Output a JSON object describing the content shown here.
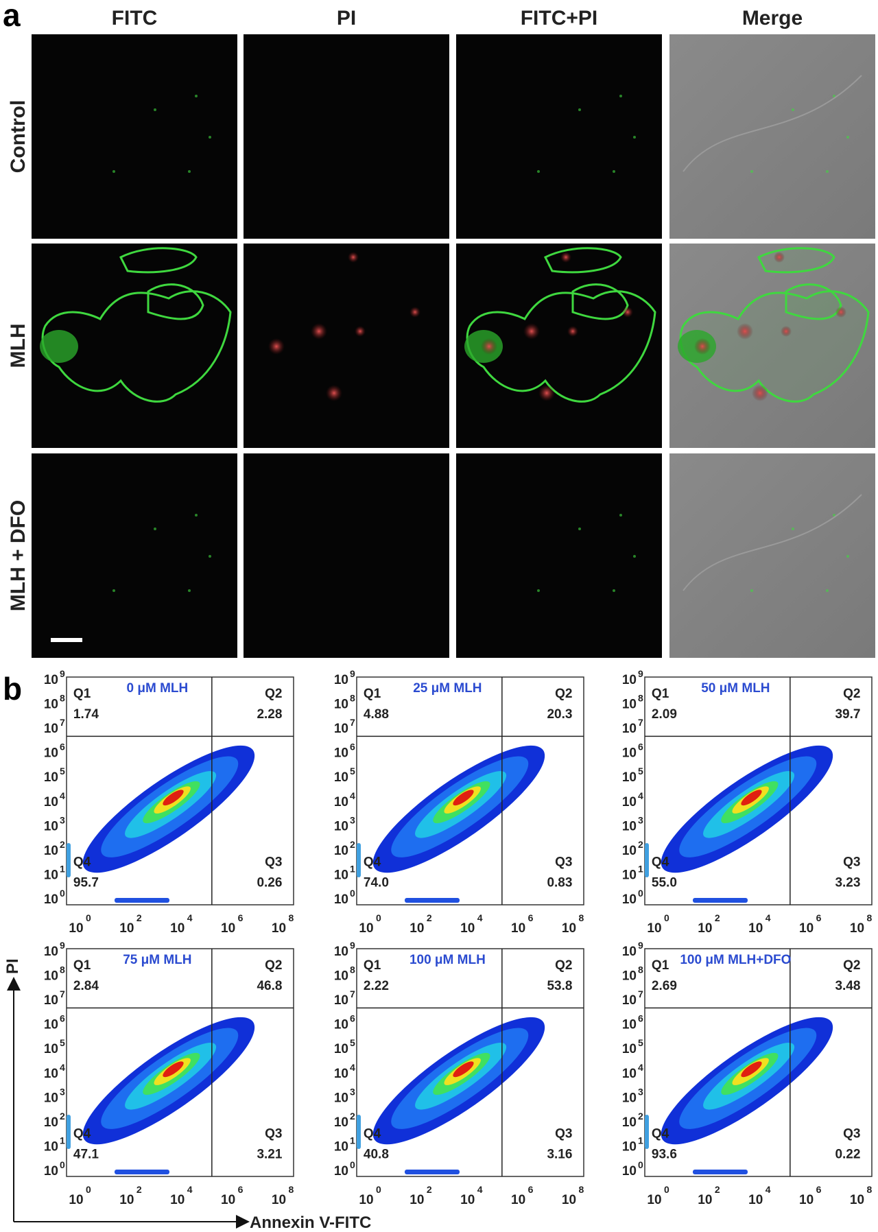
{
  "panel_a": {
    "label": "a",
    "columns": [
      "FITC",
      "PI",
      "FITC+PI",
      "Merge"
    ],
    "rows": [
      "Control",
      "MLH",
      "MLH + DFO"
    ]
  },
  "panel_b": {
    "label": "b",
    "y_axis_label": "PI",
    "x_axis_label": "Annexin V-FITC",
    "tick_base": "10",
    "x_tick_exponents": [
      "0",
      "2",
      "4",
      "6",
      "8"
    ],
    "y_tick_exponents": [
      "0",
      "1",
      "2",
      "3",
      "4",
      "5",
      "6",
      "7",
      "8",
      "9"
    ],
    "plots": [
      {
        "title": "0 μM MLH",
        "quadrants": [
          {
            "name": "Q1",
            "value": "1.74"
          },
          {
            "name": "Q2",
            "value": "2.28"
          },
          {
            "name": "Q3",
            "value": "0.26"
          },
          {
            "name": "Q4",
            "value": "95.7"
          }
        ]
      },
      {
        "title": "25 μM MLH",
        "quadrants": [
          {
            "name": "Q1",
            "value": "4.88"
          },
          {
            "name": "Q2",
            "value": "20.3"
          },
          {
            "name": "Q3",
            "value": "0.83"
          },
          {
            "name": "Q4",
            "value": "74.0"
          }
        ]
      },
      {
        "title": "50 μM MLH",
        "quadrants": [
          {
            "name": "Q1",
            "value": "2.09"
          },
          {
            "name": "Q2",
            "value": "39.7"
          },
          {
            "name": "Q3",
            "value": "3.23"
          },
          {
            "name": "Q4",
            "value": "55.0"
          }
        ]
      },
      {
        "title": "75 μM MLH",
        "quadrants": [
          {
            "name": "Q1",
            "value": "2.84"
          },
          {
            "name": "Q2",
            "value": "46.8"
          },
          {
            "name": "Q3",
            "value": "3.21"
          },
          {
            "name": "Q4",
            "value": "47.1"
          }
        ]
      },
      {
        "title": "100 μM MLH",
        "quadrants": [
          {
            "name": "Q1",
            "value": "2.22"
          },
          {
            "name": "Q2",
            "value": "53.8"
          },
          {
            "name": "Q3",
            "value": "3.16"
          },
          {
            "name": "Q4",
            "value": "40.8"
          }
        ]
      },
      {
        "title": "100 μM MLH+DFO",
        "quadrants": [
          {
            "name": "Q1",
            "value": "2.69"
          },
          {
            "name": "Q2",
            "value": "3.48"
          },
          {
            "name": "Q3",
            "value": "0.22"
          },
          {
            "name": "Q4",
            "value": "93.6"
          }
        ]
      }
    ]
  }
}
